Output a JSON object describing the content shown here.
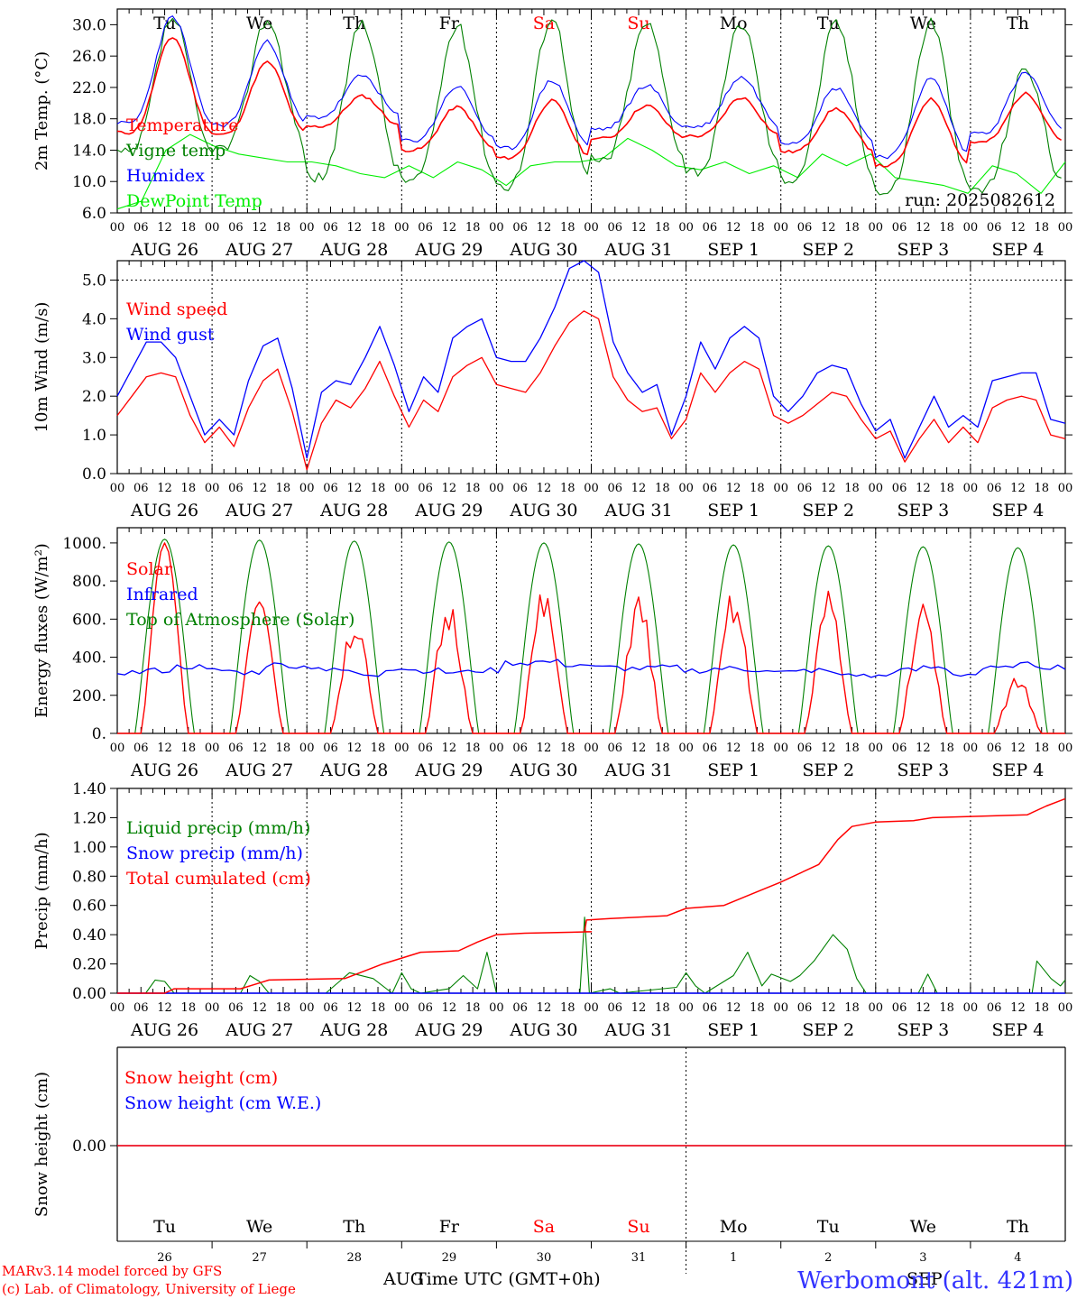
{
  "days": [
    "AUG 26",
    "AUG 27",
    "AUG 28",
    "AUG 29",
    "AUG 30",
    "AUG 31",
    "SEP  1",
    "SEP  2",
    "SEP  3",
    "SEP  4"
  ],
  "weekdays": [
    "Tu",
    "We",
    "Th",
    "Fr",
    "Sa",
    "Su",
    "Mo",
    "Tu",
    "We",
    "Th"
  ],
  "weekend_flags": [
    false,
    false,
    false,
    false,
    true,
    true,
    false,
    false,
    false,
    false
  ],
  "hour_ticks": [
    "00",
    "06",
    "12",
    "18"
  ],
  "colors": {
    "red": "#ff0000",
    "green": "#008000",
    "blue": "#0000ff",
    "lightgreen": "#00ee00",
    "caption_blue": "#3333ff"
  },
  "run_label": "run: 2025082612",
  "footer": {
    "credit1": "MARv3.14 model forced by GFS",
    "credit2": "(c) Lab. of Climatology, University of Liege",
    "xlabel": "Time UTC (GMT+0h)",
    "month_left": "AUG",
    "month_right": "SEP",
    "station": "Werbomont (alt. 421m)",
    "day_numbers": [
      "26",
      "27",
      "28",
      "29",
      "30",
      "31",
      "1",
      "2",
      "3",
      "4"
    ]
  },
  "chart_data": [
    {
      "type": "line",
      "ylabel": "2m Temp. (°C)",
      "ylim": [
        6,
        32
      ],
      "yticks": [
        "6.0",
        "10.0",
        "14.0",
        "18.0",
        "22.0",
        "26.0",
        "30.0"
      ],
      "grid": "daily vertical dotted lines",
      "legend": [
        "Temperature",
        "Vigne temp",
        "Humidex",
        "DewPoint Temp"
      ],
      "series": [
        {
          "name": "Temperature",
          "color": "red",
          "tmin": [
            16.8,
            16.0,
            15.8,
            15.6,
            16.1,
            15.5,
            15.9,
            16.4,
            15.2,
            14.5,
            14.8,
            15.6,
            16.4,
            16.5,
            16.4,
            15.6,
            15.8,
            16.8,
            17.2,
            17.3,
            17.4,
            17.0,
            16.7,
            16.6,
            16.1,
            15.8
          ],
          "tmax": [
            28.4,
            25.2,
            20.9,
            19.5,
            20.3,
            19.7,
            20.7,
            19.3,
            20.5,
            21.2
          ]
        },
        {
          "name": "Humidex",
          "color": "blue"
        },
        {
          "name": "Vigne temp",
          "color": "green",
          "tmin": [
            13.5,
            14.2,
            10.5,
            10.2,
            9.5,
            12.6,
            11.4,
            10.4,
            8.6,
            9.0
          ],
          "tmax": [
            30.8,
            30.6,
            30.4,
            29.8,
            31.0,
            30.2,
            30.2,
            30.2,
            30.4,
            24.5
          ]
        },
        {
          "name": "DewPoint Temp",
          "color": "lightgreen",
          "dewpoint": [
            6.5,
            7.5,
            14.0,
            16.0,
            14.5,
            13.5,
            13.0,
            12.5,
            12.5,
            12.0,
            11.0,
            10.5,
            12.0,
            10.5,
            12.5,
            11.5,
            9.5,
            12.0,
            12.5,
            12.5,
            13.0,
            15.5,
            14.0,
            12.0,
            11.5,
            12.5,
            11.0,
            12.0,
            10.5,
            13.5,
            12.0,
            13.5,
            10.5,
            10.0,
            9.5,
            8.5,
            12.0,
            11.0,
            8.5,
            12.5
          ]
        }
      ]
    },
    {
      "type": "line",
      "ylabel": "10m Wind (m/s)",
      "ylim": [
        0,
        5.5
      ],
      "yticks": [
        "0.0",
        "1.0",
        "2.0",
        "3.0",
        "4.0",
        "5.0"
      ],
      "legend": [
        "Wind speed",
        "Wind gust"
      ],
      "series": [
        {
          "name": "Wind speed",
          "color": "red",
          "values": [
            1.5,
            2.0,
            2.5,
            2.6,
            2.5,
            1.5,
            0.8,
            1.2,
            0.7,
            1.7,
            2.4,
            2.7,
            1.6,
            0.1,
            1.3,
            1.9,
            1.7,
            2.2,
            2.9,
            2.0,
            1.2,
            1.9,
            1.6,
            2.5,
            2.8,
            3.0,
            2.3,
            2.2,
            2.1,
            2.6,
            3.3,
            3.9,
            4.2,
            4.0,
            2.5,
            1.9,
            1.6,
            1.7,
            0.9,
            1.4,
            2.6,
            2.1,
            2.6,
            2.9,
            2.7,
            1.5,
            1.3,
            1.5,
            1.8,
            2.1,
            2.0,
            1.4,
            0.9,
            1.1,
            0.3,
            0.9,
            1.4,
            0.8,
            1.2,
            0.8,
            1.7,
            1.9,
            2.0,
            1.9,
            1.0,
            0.9
          ]
        },
        {
          "name": "Wind gust",
          "color": "blue",
          "values": [
            2.0,
            2.7,
            3.4,
            3.4,
            3.0,
            2.0,
            1.0,
            1.4,
            1.0,
            2.4,
            3.3,
            3.5,
            2.2,
            0.4,
            2.1,
            2.4,
            2.3,
            3.0,
            3.8,
            2.8,
            1.6,
            2.5,
            2.1,
            3.5,
            3.8,
            4.0,
            3.0,
            2.9,
            2.9,
            3.5,
            4.3,
            5.3,
            5.5,
            5.2,
            3.4,
            2.6,
            2.1,
            2.3,
            1.0,
            2.0,
            3.4,
            2.7,
            3.5,
            3.8,
            3.5,
            2.0,
            1.6,
            2.0,
            2.6,
            2.8,
            2.7,
            1.8,
            1.1,
            1.4,
            0.4,
            1.2,
            2.0,
            1.2,
            1.5,
            1.2,
            2.4,
            2.5,
            2.6,
            2.6,
            1.4,
            1.3
          ]
        }
      ]
    },
    {
      "type": "line",
      "ylabel": "Energy fluxes (W/m²)",
      "ylim": [
        0,
        1080
      ],
      "yticks": [
        "0.",
        "200.",
        "400.",
        "600.",
        "800.",
        "1000."
      ],
      "legend": [
        "Solar",
        "Infrared",
        "Top of Atmosphere (Solar)"
      ],
      "series": [
        {
          "name": "Solar",
          "color": "red",
          "daily_peak": [
            1000,
            690,
            610,
            680,
            730,
            710,
            720,
            720,
            670,
            300
          ]
        },
        {
          "name": "Infrared",
          "color": "blue",
          "base": [
            320,
            330,
            350,
            330,
            320,
            360,
            350,
            330,
            310,
            340,
            330,
            320,
            330,
            370,
            375,
            360,
            345,
            340,
            345,
            330,
            340,
            335,
            320,
            330,
            310,
            300,
            330,
            345,
            310,
            340,
            360,
            350
          ]
        },
        {
          "name": "Top of Atmosphere (Solar)",
          "color": "green",
          "daily_peak": [
            1020,
            1015,
            1010,
            1005,
            1000,
            995,
            990,
            985,
            980,
            975
          ]
        }
      ]
    },
    {
      "type": "line",
      "ylabel": "Precip (mm/h)",
      "ylim": [
        0,
        1.4
      ],
      "yticks": [
        "0.00",
        "0.20",
        "0.40",
        "0.60",
        "0.80",
        "1.00",
        "1.20",
        "1.40"
      ],
      "legend": [
        "Liquid precip (mm/h)",
        "Snow precip (mm/h)",
        "Total cumulated (cm)"
      ],
      "series": [
        {
          "name": "Total cumulated (cm)",
          "color": "red",
          "points": [
            [
              0,
              0
            ],
            [
              0.5,
              0
            ],
            [
              0.6,
              0.03
            ],
            [
              1.3,
              0.03
            ],
            [
              1.5,
              0.07
            ],
            [
              1.6,
              0.09
            ],
            [
              2.4,
              0.1
            ],
            [
              2.6,
              0.15
            ],
            [
              2.8,
              0.2
            ],
            [
              3.0,
              0.24
            ],
            [
              3.2,
              0.28
            ],
            [
              3.6,
              0.29
            ],
            [
              3.8,
              0.35
            ],
            [
              4.0,
              0.4
            ],
            [
              4.3,
              0.41
            ],
            [
              5.0,
              0.42
            ],
            [
              4.93,
              0.42
            ],
            [
              4.95,
              0.5
            ],
            [
              5.2,
              0.51
            ],
            [
              5.8,
              0.53
            ],
            [
              6.0,
              0.58
            ],
            [
              6.4,
              0.6
            ],
            [
              6.7,
              0.68
            ],
            [
              7.0,
              0.76
            ],
            [
              7.4,
              0.88
            ],
            [
              7.6,
              1.05
            ],
            [
              7.75,
              1.14
            ],
            [
              8.0,
              1.17
            ],
            [
              8.4,
              1.18
            ],
            [
              8.6,
              1.2
            ],
            [
              9.6,
              1.22
            ],
            [
              9.8,
              1.28
            ],
            [
              10.0,
              1.33
            ]
          ]
        },
        {
          "name": "Liquid precip (mm/h)",
          "color": "green",
          "points": [
            [
              0.3,
              0
            ],
            [
              0.4,
              0.09
            ],
            [
              0.5,
              0.08
            ],
            [
              0.6,
              0
            ],
            [
              1.3,
              0
            ],
            [
              1.4,
              0.12
            ],
            [
              1.5,
              0.08
            ],
            [
              1.6,
              0
            ],
            [
              2.2,
              0
            ],
            [
              2.45,
              0.14
            ],
            [
              2.7,
              0.1
            ],
            [
              2.9,
              0
            ],
            [
              3.0,
              0.14
            ],
            [
              3.1,
              0.03
            ],
            [
              3.2,
              0
            ],
            [
              3.5,
              0.03
            ],
            [
              3.65,
              0.12
            ],
            [
              3.8,
              0.03
            ],
            [
              3.9,
              0.28
            ],
            [
              4.0,
              0
            ],
            [
              4.88,
              0
            ],
            [
              4.93,
              0.52
            ],
            [
              4.98,
              0
            ],
            [
              5.2,
              0.03
            ],
            [
              5.3,
              0
            ],
            [
              5.9,
              0.04
            ],
            [
              6.0,
              0.14
            ],
            [
              6.1,
              0.05
            ],
            [
              6.2,
              0
            ],
            [
              6.5,
              0.12
            ],
            [
              6.65,
              0.28
            ],
            [
              6.8,
              0.05
            ],
            [
              6.9,
              0.13
            ],
            [
              7.1,
              0.08
            ],
            [
              7.2,
              0.12
            ],
            [
              7.35,
              0.22
            ],
            [
              7.55,
              0.4
            ],
            [
              7.7,
              0.3
            ],
            [
              7.8,
              0.1
            ],
            [
              7.9,
              0
            ],
            [
              8.45,
              0
            ],
            [
              8.55,
              0.13
            ],
            [
              8.65,
              0
            ],
            [
              9.0,
              0
            ],
            [
              9.1,
              0
            ],
            [
              9.65,
              0
            ],
            [
              9.7,
              0.22
            ],
            [
              9.85,
              0.1
            ],
            [
              9.95,
              0.05
            ],
            [
              10.0,
              0.09
            ]
          ]
        },
        {
          "name": "Snow precip (mm/h)",
          "color": "blue",
          "values": [
            0
          ]
        }
      ]
    },
    {
      "type": "line",
      "ylabel": "Snow height (cm)",
      "yticks": [
        "0.00"
      ],
      "legend": [
        "Snow height (cm)",
        "Snow height (cm W.E.)"
      ],
      "series": [
        {
          "name": "Snow height (cm)",
          "color": "red",
          "values": [
            0,
            0
          ]
        },
        {
          "name": "Snow height (cm W.E.)",
          "color": "blue",
          "values": [
            0,
            0
          ]
        }
      ]
    }
  ]
}
